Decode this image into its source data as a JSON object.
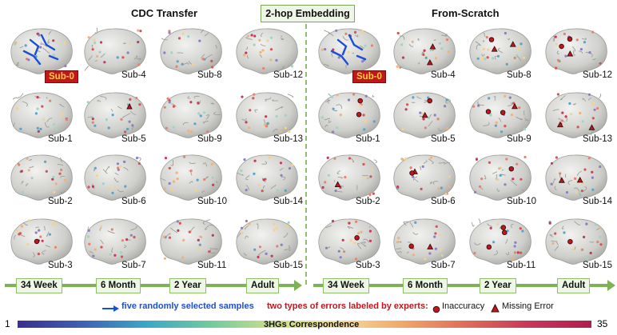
{
  "titles": {
    "left": "CDC Transfer",
    "center": "2-hop Embedding",
    "right": "From-Scratch"
  },
  "subjects": {
    "col1": [
      "Sub-0",
      "Sub-1",
      "Sub-2",
      "Sub-3"
    ],
    "col2": [
      "Sub-4",
      "Sub-5",
      "Sub-6",
      "Sub-7"
    ],
    "col3": [
      "Sub-8",
      "Sub-9",
      "Sub-10",
      "Sub-11"
    ],
    "col4": [
      "Sub-12",
      "Sub-13",
      "Sub-14",
      "Sub-15"
    ]
  },
  "timeline": [
    "34 Week",
    "6 Month",
    "2 Year",
    "Adult"
  ],
  "legend": {
    "samples": "five randomly selected samples",
    "errors_title": "two types of errors labeled by experts:",
    "inaccuracy": "Inaccuracy",
    "missing": "Missing Error"
  },
  "colorbar": {
    "min": "1",
    "max": "35",
    "label": "3HGs Correspondence"
  },
  "colors": {
    "accent_green": "#7db255",
    "sub0_bg": "#c0161c",
    "sub0_text": "#f7d23a",
    "samples_text": "#1a4fd6",
    "errors_text": "#c0161c"
  }
}
